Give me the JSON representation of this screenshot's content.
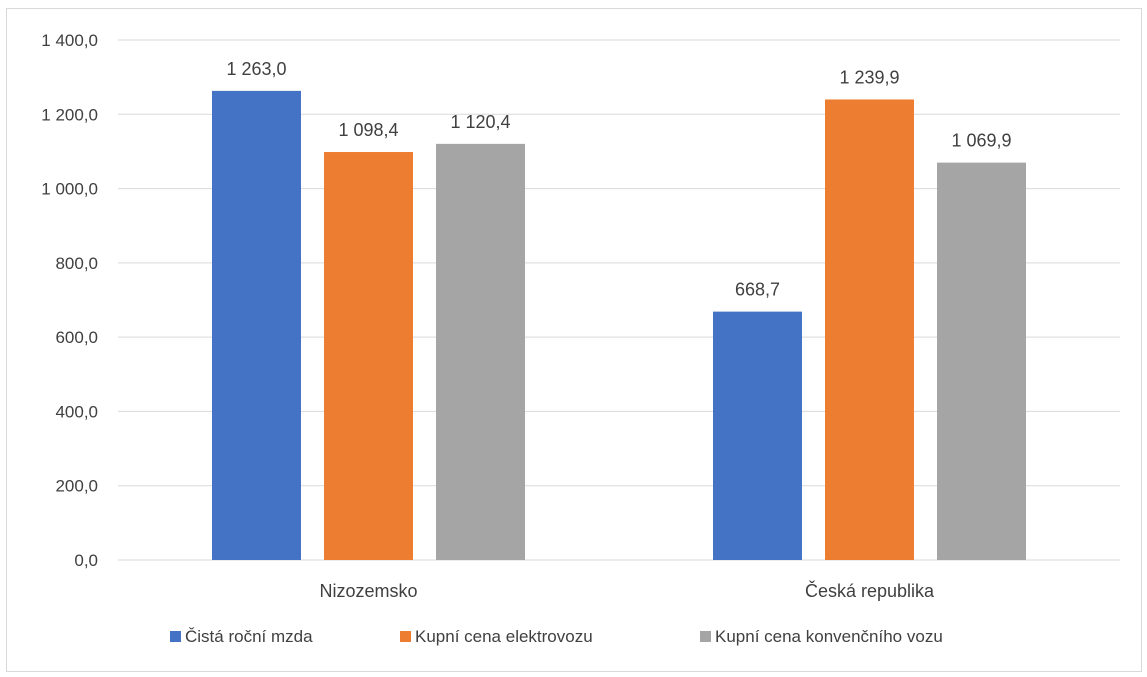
{
  "chart_data": {
    "type": "bar",
    "title": "",
    "xlabel": "",
    "ylabel": "",
    "categories": [
      "Nizozemsko",
      "Česká republika"
    ],
    "series": [
      {
        "name": "Čistá roční mzda",
        "values": [
          1263.0,
          668.7
        ],
        "value_labels": [
          "1 263,0",
          "668,7"
        ],
        "color": "#4472C4"
      },
      {
        "name": "Kupní cena elektrovozu",
        "values": [
          1098.4,
          1239.9
        ],
        "value_labels": [
          "1 098,4",
          "1 239,9"
        ],
        "color": "#ED7D31"
      },
      {
        "name": "Kupní cena konvenčního vozu",
        "values": [
          1120.4,
          1069.9
        ],
        "value_labels": [
          "1 120,4",
          "1 069,9"
        ],
        "color": "#A5A5A5"
      }
    ],
    "ylim": [
      0,
      1400
    ],
    "y_ticks": [
      0,
      200,
      400,
      600,
      800,
      1000,
      1200,
      1400
    ],
    "y_tick_labels": [
      "0,0",
      "200,0",
      "400,0",
      "600,0",
      "800,0",
      "1 000,0",
      "1 200,0",
      "1 400,0"
    ],
    "grid": true,
    "legend_position": "bottom",
    "gridline_color": "#d9d9d9"
  }
}
